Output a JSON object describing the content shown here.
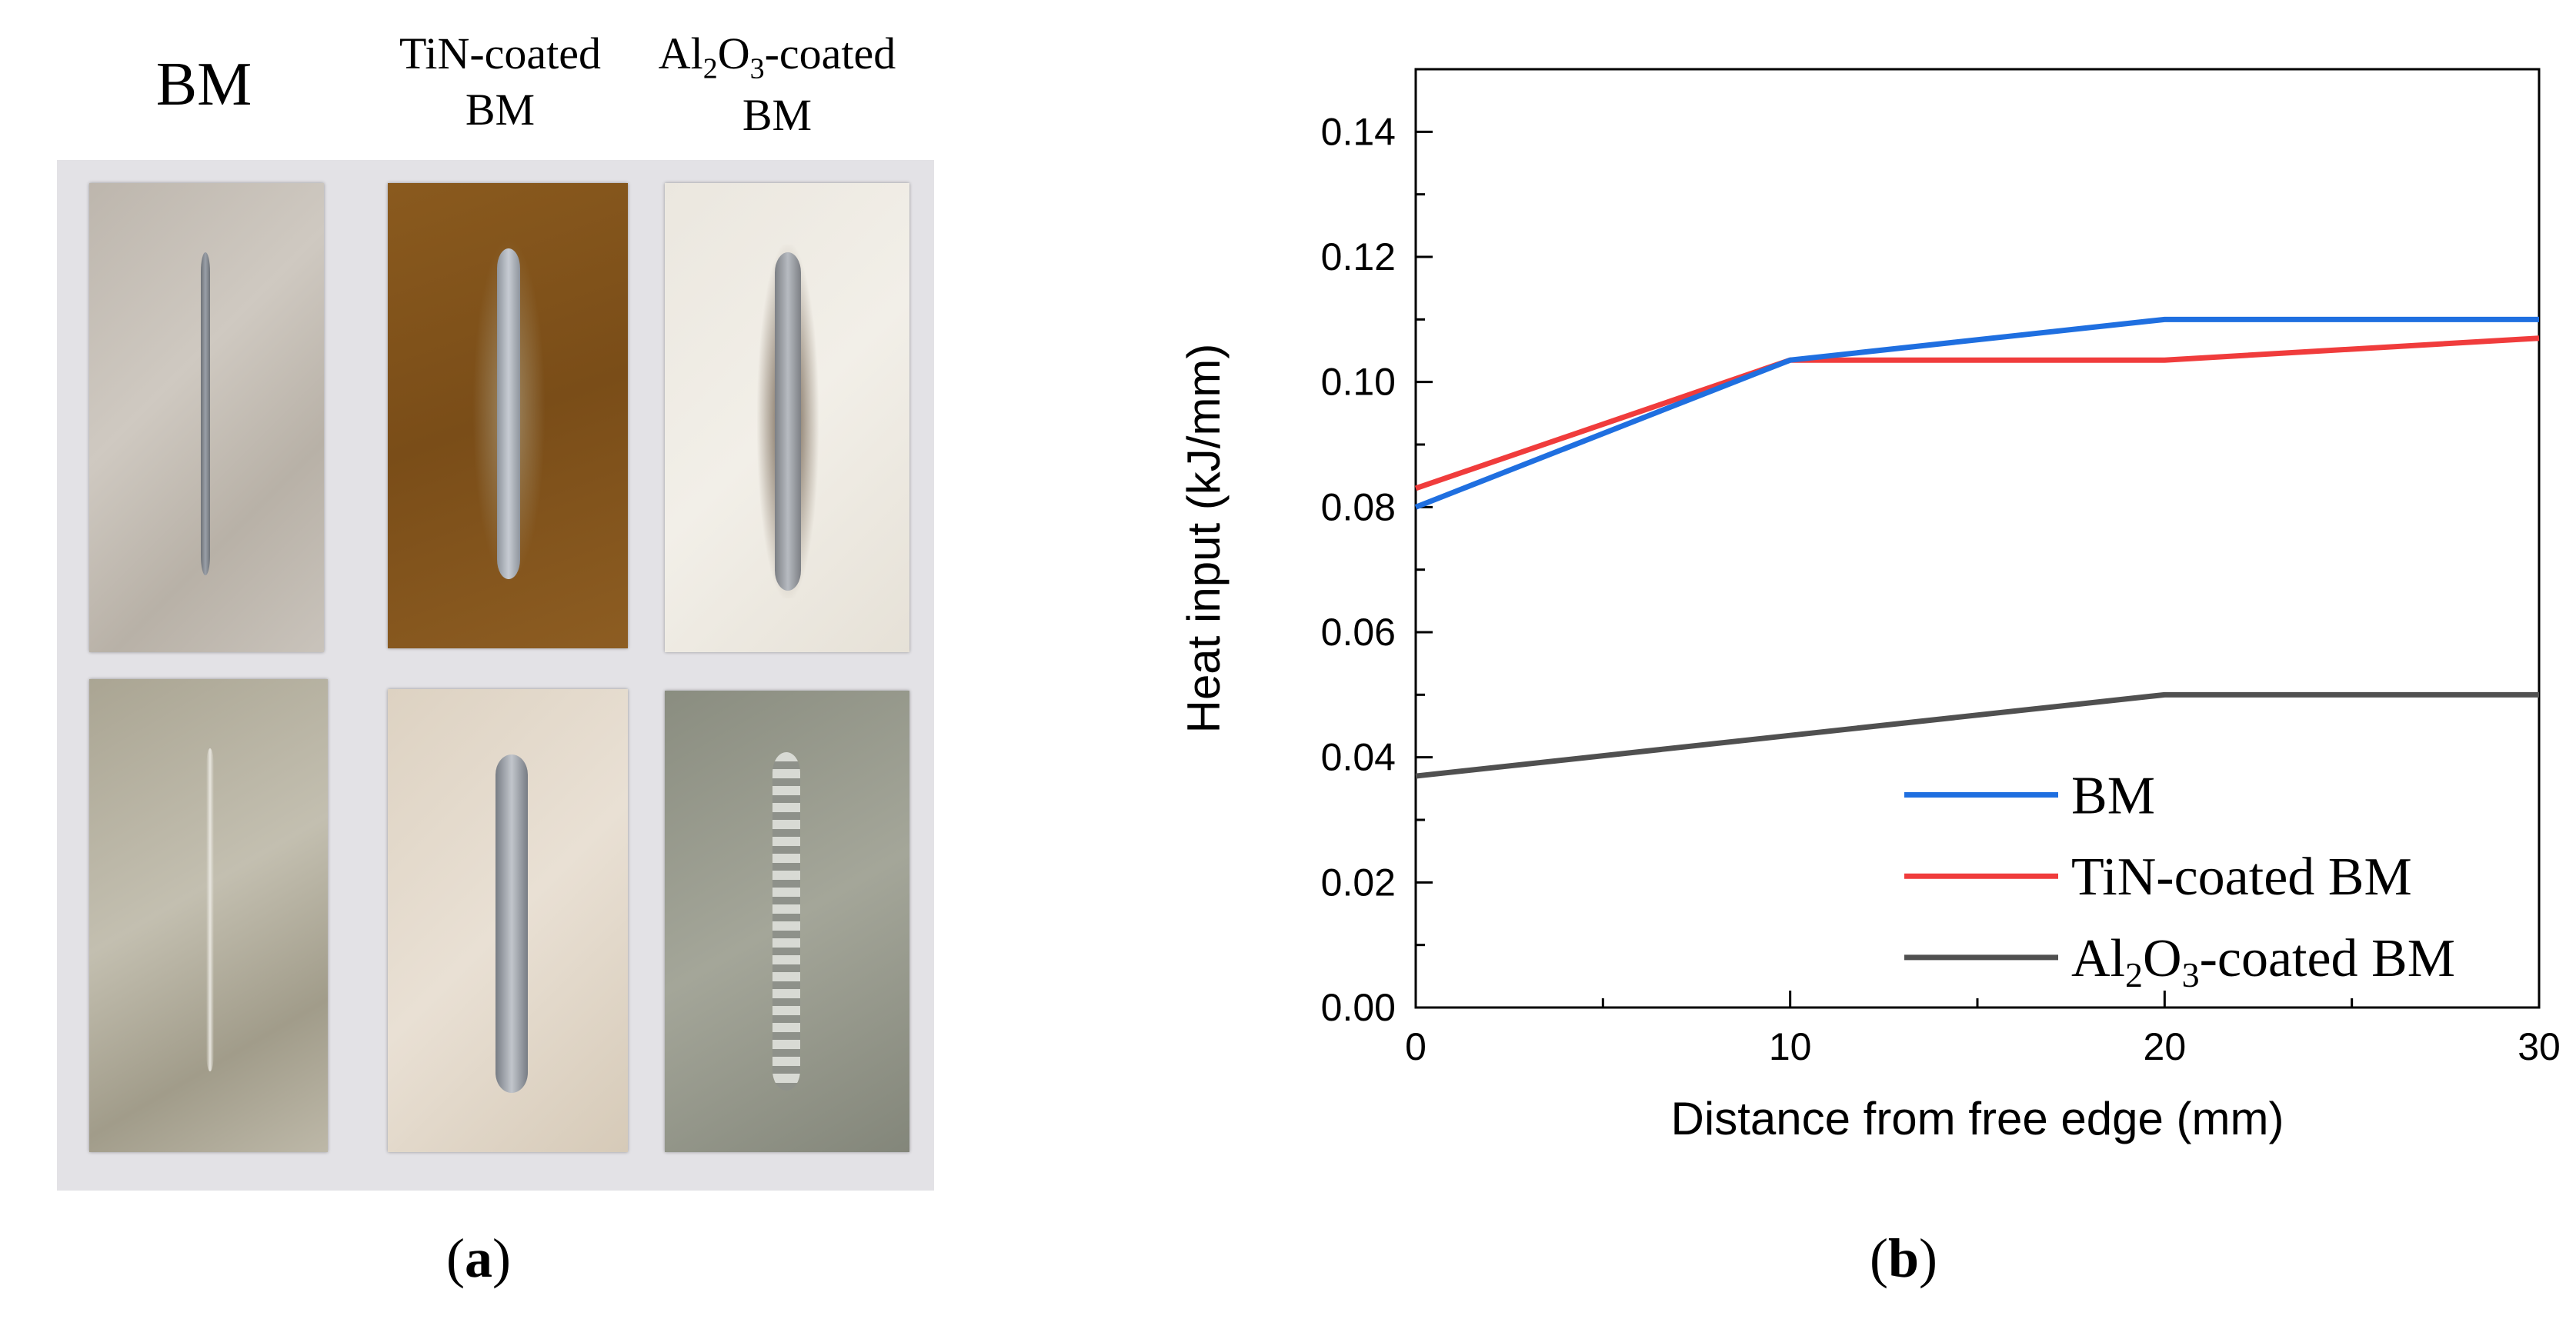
{
  "panel_a": {
    "labels": {
      "bm": "BM",
      "tin_line1": "TiN-coated",
      "tin_line2": "BM",
      "al_prefix": "Al",
      "al_sub1": "2",
      "al_mid": "O",
      "al_sub2": "3",
      "al_suffix": "-coated",
      "al_line2": "BM"
    },
    "caption_open": "(",
    "caption_letter": "a",
    "caption_close": ")"
  },
  "panel_b": {
    "caption_open": "(",
    "caption_letter": "b",
    "caption_close": ")"
  },
  "chart_data": {
    "type": "line",
    "xlabel": "Distance from free edge (mm)",
    "ylabel": "Heat input (kJ/mm)",
    "xlim": [
      0,
      30
    ],
    "ylim": [
      0,
      0.15
    ],
    "xticks": [
      "0",
      "10",
      "20",
      "30"
    ],
    "yticks": [
      "0.00",
      "0.02",
      "0.04",
      "0.06",
      "0.08",
      "0.10",
      "0.12",
      "0.14"
    ],
    "grid": false,
    "legend_position": "bottom-right",
    "series": [
      {
        "name": "BM",
        "color": "#1f6fe0",
        "x": [
          0,
          10,
          20,
          30
        ],
        "y": [
          0.08,
          0.1035,
          0.11,
          0.11
        ]
      },
      {
        "name": "TiN-coated BM",
        "color": "#f03c3c",
        "x": [
          0,
          10,
          20,
          30
        ],
        "y": [
          0.083,
          0.1035,
          0.1035,
          0.107
        ]
      },
      {
        "name": "Al2O3-coated BM",
        "color": "#505050",
        "x": [
          0,
          10,
          20,
          30
        ],
        "y": [
          0.037,
          0.0435,
          0.05,
          0.05
        ]
      }
    ],
    "legend_labels": {
      "bm": "BM",
      "tin": "TiN-coated BM",
      "al_prefix": "Al",
      "al_sub1": "2",
      "al_mid": "O",
      "al_sub2": "3",
      "al_suffix": "-coated BM"
    }
  }
}
